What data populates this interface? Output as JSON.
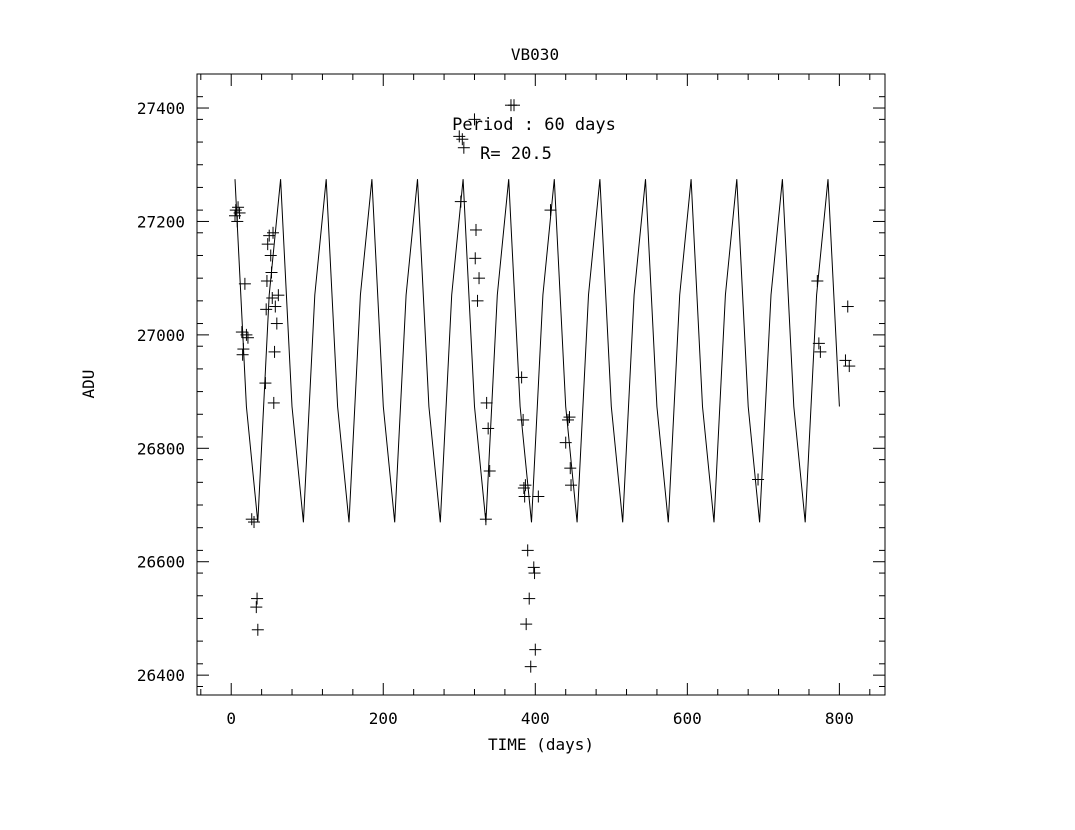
{
  "chart_data": {
    "type": "scatter",
    "title": "VB030",
    "xlabel": "TIME (days)",
    "ylabel": "ADU",
    "xlim": [
      -45,
      860
    ],
    "ylim": [
      26365,
      27460
    ],
    "xticks": [
      0,
      200,
      400,
      600,
      800
    ],
    "yticks": [
      26400,
      26600,
      26800,
      27000,
      27200,
      27400
    ],
    "grid": false,
    "annotations": [
      "Period : 60 days",
      "R= 20.5"
    ],
    "model": {
      "name": "sinusoidal fit",
      "period_days": 60,
      "mean": 26972,
      "amplitude": 318,
      "t_max": 62,
      "x_start": 5,
      "x_end": 812,
      "x_step": 15
    },
    "series": [
      {
        "points": [
          [
            5,
            27210
          ],
          [
            6,
            27220
          ],
          [
            8,
            27200
          ],
          [
            9,
            27225
          ],
          [
            11,
            27215
          ],
          [
            14,
            27005
          ],
          [
            15,
            26965
          ],
          [
            16,
            26975
          ],
          [
            18,
            27090
          ],
          [
            20,
            27000
          ],
          [
            22,
            26995
          ],
          [
            27,
            26675
          ],
          [
            30,
            26670
          ],
          [
            33,
            26520
          ],
          [
            34,
            26535
          ],
          [
            35,
            26480
          ],
          [
            45,
            26915
          ],
          [
            46,
            27045
          ],
          [
            47,
            27095
          ],
          [
            48,
            27160
          ],
          [
            50,
            27175
          ],
          [
            52,
            27140
          ],
          [
            53,
            27110
          ],
          [
            54,
            27065
          ],
          [
            55,
            27180
          ],
          [
            56,
            26880
          ],
          [
            57,
            26970
          ],
          [
            58,
            27050
          ],
          [
            60,
            27020
          ],
          [
            62,
            27070
          ],
          [
            300,
            27350
          ],
          [
            302,
            27235
          ],
          [
            304,
            27345
          ],
          [
            306,
            27330
          ],
          [
            320,
            27380
          ],
          [
            321,
            27135
          ],
          [
            322,
            27185
          ],
          [
            324,
            27060
          ],
          [
            326,
            27100
          ],
          [
            335,
            26675
          ],
          [
            336,
            26880
          ],
          [
            338,
            26835
          ],
          [
            340,
            26760
          ],
          [
            368,
            27405
          ],
          [
            372,
            27405
          ],
          [
            382,
            26925
          ],
          [
            384,
            26850
          ],
          [
            385,
            26730
          ],
          [
            386,
            26715
          ],
          [
            387,
            26735
          ],
          [
            388,
            26490
          ],
          [
            390,
            26620
          ],
          [
            392,
            26535
          ],
          [
            394,
            26415
          ],
          [
            398,
            26590
          ],
          [
            399,
            26580
          ],
          [
            400,
            26445
          ],
          [
            404,
            26715
          ],
          [
            420,
            27220
          ],
          [
            440,
            26810
          ],
          [
            443,
            26850
          ],
          [
            445,
            26855
          ],
          [
            446,
            26765
          ],
          [
            447,
            26735
          ],
          [
            693,
            26745
          ],
          [
            771,
            27095
          ],
          [
            773,
            26985
          ],
          [
            775,
            26970
          ],
          [
            808,
            26955
          ],
          [
            811,
            27050
          ],
          [
            813,
            26945
          ]
        ]
      }
    ]
  }
}
